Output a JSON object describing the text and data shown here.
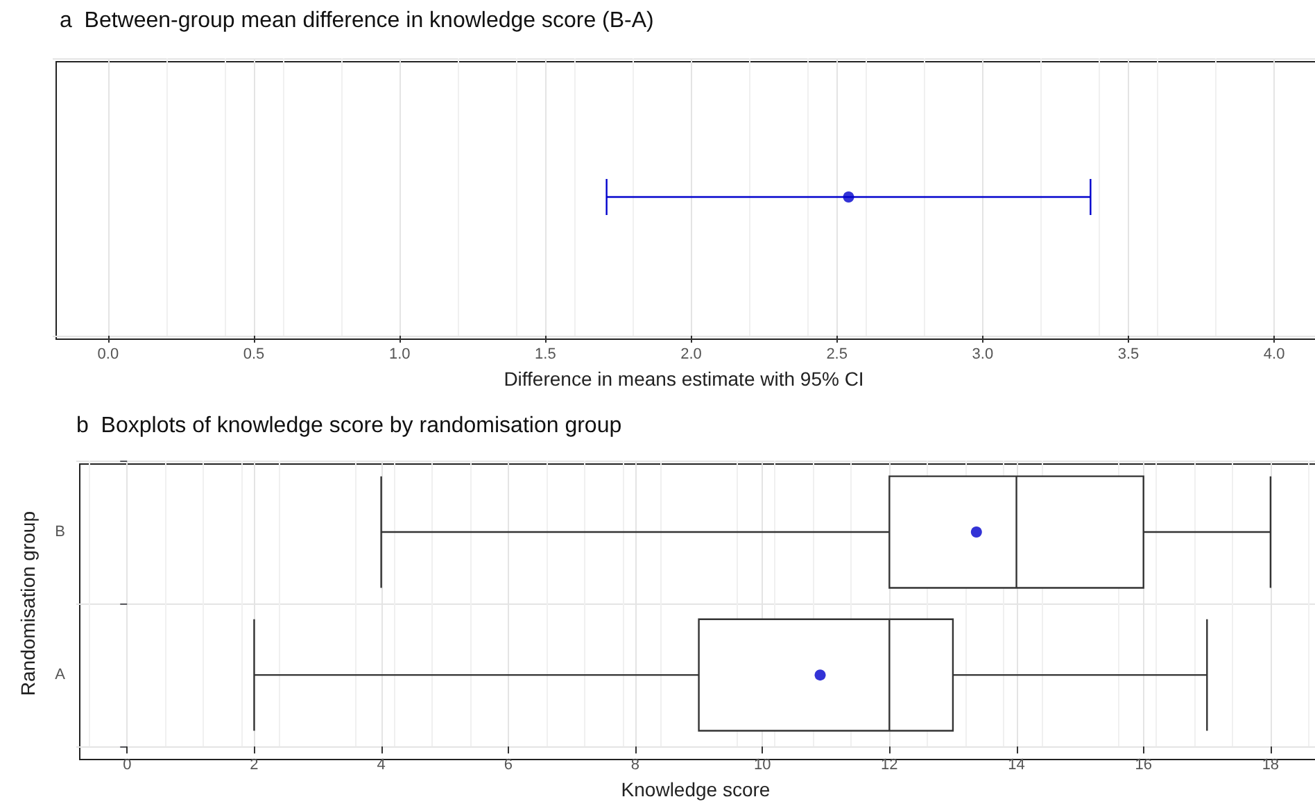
{
  "chart_data": [
    {
      "type": "scatter",
      "title": "a  Between-group mean difference in knowledge score (B-A)",
      "xlabel": "Difference in means estimate with 95% CI",
      "orientation": "horizontal",
      "categories": [
        null
      ],
      "series": [
        {
          "color": "#0000cc",
          "values": [
            2.54
          ],
          "errors": [
            [
              1.71,
              3.37
            ]
          ]
        }
      ],
      "xlim": [
        -0.19,
        4.14
      ],
      "xticks": [
        {
          "value": 0,
          "label": "0.0"
        },
        {
          "value": 0.5,
          "label": "0.5"
        },
        {
          "value": 1,
          "label": "1.0"
        },
        {
          "value": 1.5,
          "label": "1.5"
        },
        {
          "value": 2,
          "label": "2.0"
        },
        {
          "value": 2.5,
          "label": "2.5"
        },
        {
          "value": 3,
          "label": "3.0"
        },
        {
          "value": 3.5,
          "label": "3.5"
        },
        {
          "value": 4,
          "label": "4.0"
        }
      ],
      "tick_labels": "x",
      "grid": true,
      "marker": "circle"
    },
    {
      "type": "box",
      "title": "b  Boxplots of knowledge score by randomisation group",
      "xlabel": "Knowledge score",
      "ylabel": "Randomisation group",
      "orientation": "horizontal",
      "categories": [
        "B",
        "A"
      ],
      "boxes": [
        {
          "low": 4,
          "q1": 12,
          "median": 14,
          "q3": 16,
          "high": 18,
          "mean": 13.37
        },
        {
          "low": 2,
          "q1": 9,
          "median": 12,
          "q3": 13,
          "high": 17,
          "mean": 10.91
        }
      ],
      "xlim": [
        -0.8,
        18.7
      ],
      "xticks": [
        0,
        2,
        4,
        6,
        8,
        10,
        12,
        14,
        16,
        18
      ],
      "grid": true
    }
  ]
}
